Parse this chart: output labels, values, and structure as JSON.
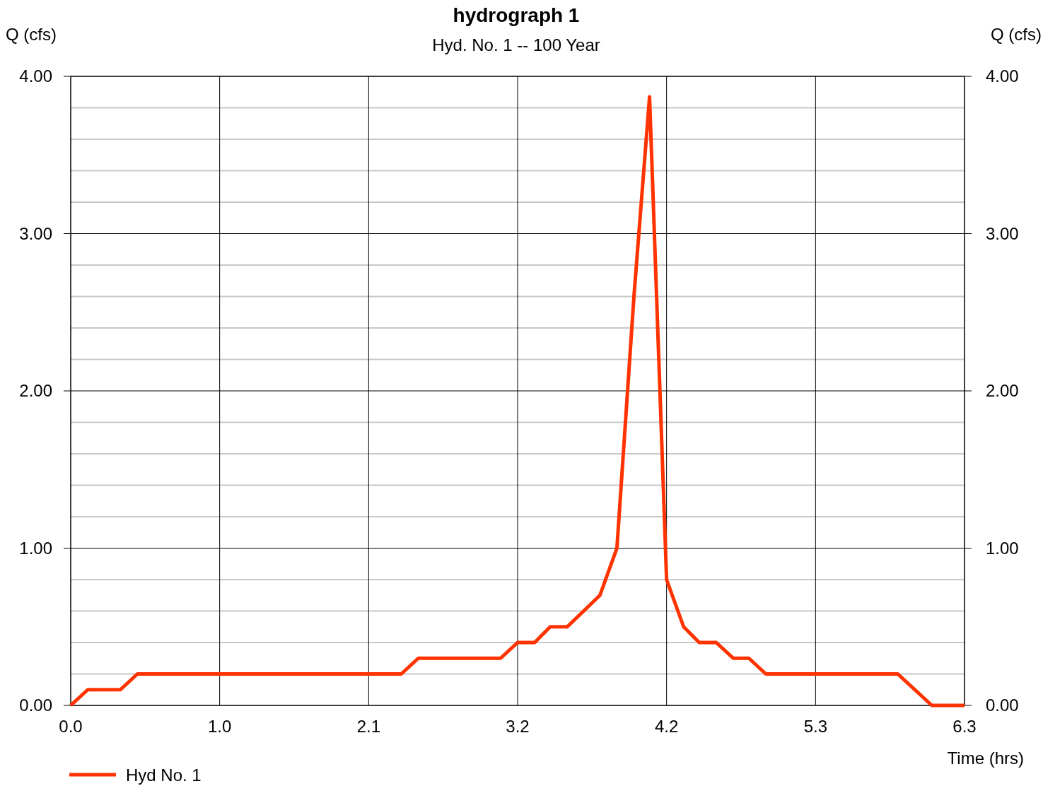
{
  "chart_data": {
    "type": "line",
    "title": "hydrograph 1",
    "subtitle": "Hyd. No. 1 -- 100 Year",
    "xlabel": "Time (hrs)",
    "ylabel": "Q (cfs)",
    "y2label": "Q (cfs)",
    "x": [
      0,
      0.12,
      0.35,
      0.47,
      2.33,
      2.45,
      3.03,
      3.15,
      3.27,
      3.38,
      3.5,
      3.73,
      3.85,
      3.97,
      4.08,
      4.2,
      4.32,
      4.43,
      4.55,
      4.67,
      4.78,
      4.9,
      5.83,
      6.07,
      6.3
    ],
    "series": [
      {
        "name": "Hyd No. 1",
        "color": "#ff3300",
        "values": [
          0,
          0.1,
          0.1,
          0.2,
          0.2,
          0.3,
          0.3,
          0.4,
          0.4,
          0.5,
          0.5,
          0.7,
          1.0,
          2.6,
          3.87,
          0.8,
          0.5,
          0.4,
          0.4,
          0.3,
          0.3,
          0.2,
          0.2,
          0,
          0
        ]
      }
    ],
    "xlim": [
      0,
      6.3
    ],
    "xticks": [
      {
        "value": 0,
        "label": "0.0"
      },
      {
        "value": 1.05,
        "label": "1.0"
      },
      {
        "value": 2.1,
        "label": "2.1"
      },
      {
        "value": 3.15,
        "label": "3.2"
      },
      {
        "value": 4.2,
        "label": "4.2"
      },
      {
        "value": 5.25,
        "label": "5.3"
      },
      {
        "value": 6.3,
        "label": "6.3"
      }
    ],
    "ylim": [
      0,
      4
    ],
    "yticks": [
      {
        "value": 0,
        "label": "0.00"
      },
      {
        "value": 0.2,
        "label": null
      },
      {
        "value": 0.4,
        "label": null
      },
      {
        "value": 0.6,
        "label": null
      },
      {
        "value": 0.8,
        "label": null
      },
      {
        "value": 1,
        "label": "1.00"
      },
      {
        "value": 1.2,
        "label": null
      },
      {
        "value": 1.4,
        "label": null
      },
      {
        "value": 1.6,
        "label": null
      },
      {
        "value": 1.8,
        "label": null
      },
      {
        "value": 2,
        "label": "2.00"
      },
      {
        "value": 2.2,
        "label": null
      },
      {
        "value": 2.4,
        "label": null
      },
      {
        "value": 2.6,
        "label": null
      },
      {
        "value": 2.8,
        "label": null
      },
      {
        "value": 3,
        "label": "3.00"
      },
      {
        "value": 3.2,
        "label": null
      },
      {
        "value": 3.4,
        "label": null
      },
      {
        "value": 3.6,
        "label": null
      },
      {
        "value": 3.8,
        "label": null
      },
      {
        "value": 4,
        "label": "4.00"
      }
    ],
    "y2lim": [
      0,
      4
    ],
    "y2ticks": [
      {
        "value": 0,
        "label": "0.00"
      },
      {
        "value": 1,
        "label": "1.00"
      },
      {
        "value": 2,
        "label": "2.00"
      },
      {
        "value": 3,
        "label": "3.00"
      },
      {
        "value": 4,
        "label": "4.00"
      }
    ],
    "grid": true,
    "legend": "bottom left",
    "marker": "none",
    "line_style": "solid"
  }
}
